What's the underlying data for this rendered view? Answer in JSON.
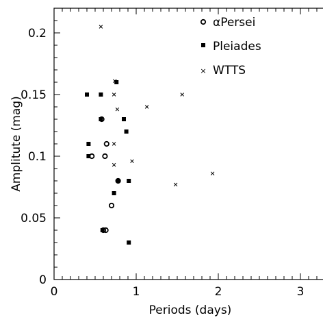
{
  "chart_data": {
    "type": "scatter",
    "xlabel": "Periods (days)",
    "ylabel": "Amplitute (mag)",
    "xlim": [
      0,
      3.5
    ],
    "ylim": [
      0,
      0.22
    ],
    "x_ticks": [
      "0",
      "1",
      "2",
      "3"
    ],
    "y_ticks": [
      "0",
      "0.05",
      "0.1",
      "0.15",
      "0.2"
    ],
    "legend_position": "top-right",
    "series": [
      {
        "name": "αPersei",
        "marker": "open-circle",
        "points": [
          [
            0.58,
            0.13
          ],
          [
            0.64,
            0.11
          ],
          [
            0.62,
            0.1
          ],
          [
            0.46,
            0.1
          ],
          [
            0.78,
            0.08
          ],
          [
            0.7,
            0.06
          ],
          [
            0.63,
            0.04
          ],
          [
            0.6,
            0.04
          ]
        ]
      },
      {
        "name": "Pleiades",
        "marker": "filled-square",
        "points": [
          [
            0.4,
            0.15
          ],
          [
            0.57,
            0.15
          ],
          [
            0.76,
            0.16
          ],
          [
            0.57,
            0.13
          ],
          [
            0.85,
            0.13
          ],
          [
            0.88,
            0.12
          ],
          [
            0.42,
            0.11
          ],
          [
            0.42,
            0.1
          ],
          [
            0.78,
            0.08
          ],
          [
            0.91,
            0.08
          ],
          [
            0.73,
            0.07
          ],
          [
            0.59,
            0.04
          ],
          [
            0.91,
            0.03
          ]
        ]
      },
      {
        "name": "WTTS",
        "marker": "cross",
        "points": [
          [
            0.57,
            0.205
          ],
          [
            0.74,
            0.161
          ],
          [
            0.73,
            0.15
          ],
          [
            1.56,
            0.15
          ],
          [
            1.13,
            0.14
          ],
          [
            0.77,
            0.138
          ],
          [
            0.73,
            0.11
          ],
          [
            0.95,
            0.096
          ],
          [
            0.73,
            0.093
          ],
          [
            1.93,
            0.086
          ],
          [
            1.48,
            0.077
          ]
        ]
      }
    ]
  }
}
